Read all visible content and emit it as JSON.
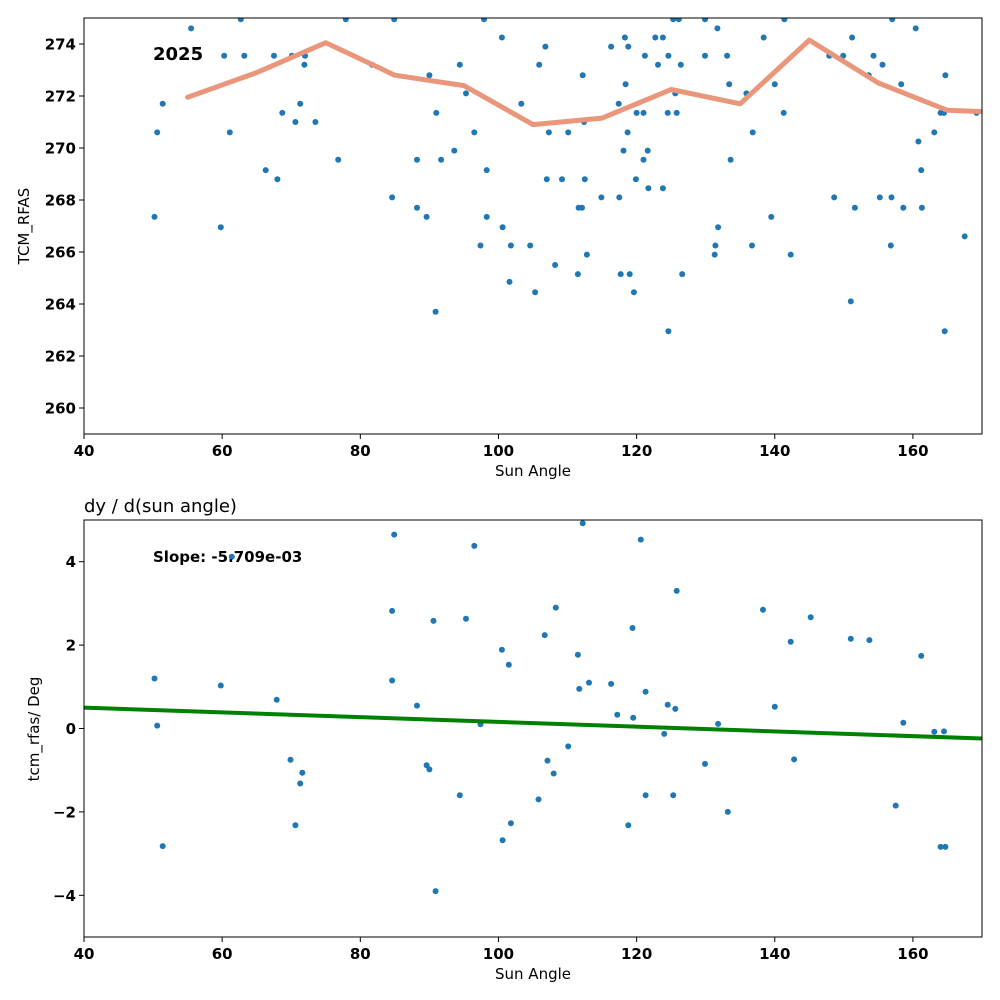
{
  "colors": {
    "points": "#1f77b4",
    "trend_line": "#e9967a",
    "fit_line": "#008000"
  },
  "chart_data": [
    {
      "type": "scatter",
      "title": "",
      "annotation": "2025",
      "xlabel": "Sun Angle",
      "ylabel": "TCM_RFAS",
      "xlim": [
        40,
        170
      ],
      "ylim": [
        259,
        275
      ],
      "xticks": [
        40,
        60,
        80,
        100,
        120,
        140,
        160
      ],
      "yticks": [
        260,
        262,
        264,
        266,
        268,
        270,
        272,
        274
      ],
      "grid": false,
      "points": [
        [
          50.2,
          267.35
        ],
        [
          50.6,
          270.6
        ],
        [
          51.4,
          271.7
        ],
        [
          55.5,
          274.6
        ],
        [
          59.8,
          266.95
        ],
        [
          60.3,
          273.55
        ],
        [
          61.1,
          270.6
        ],
        [
          62.7,
          274.95
        ],
        [
          63.2,
          273.55
        ],
        [
          66.3,
          269.15
        ],
        [
          67.5,
          273.55
        ],
        [
          68.0,
          268.8
        ],
        [
          68.7,
          271.35
        ],
        [
          70.1,
          273.55
        ],
        [
          70.6,
          271.0
        ],
        [
          71.3,
          271.7
        ],
        [
          71.9,
          273.2
        ],
        [
          72.0,
          273.55
        ],
        [
          73.5,
          271.0
        ],
        [
          76.8,
          269.55
        ],
        [
          77.9,
          274.95
        ],
        [
          81.7,
          273.2
        ],
        [
          84.6,
          268.1
        ],
        [
          84.9,
          274.95
        ],
        [
          88.2,
          269.55
        ],
        [
          88.2,
          267.7
        ],
        [
          89.6,
          267.35
        ],
        [
          90.0,
          272.8
        ],
        [
          90.9,
          263.7
        ],
        [
          91.0,
          271.35
        ],
        [
          91.7,
          269.55
        ],
        [
          93.6,
          269.9
        ],
        [
          94.4,
          273.2
        ],
        [
          95.3,
          272.1
        ],
        [
          96.5,
          270.6
        ],
        [
          97.4,
          266.25
        ],
        [
          97.9,
          274.95
        ],
        [
          98.3,
          269.15
        ],
        [
          98.3,
          267.35
        ],
        [
          100.5,
          274.25
        ],
        [
          100.6,
          266.95
        ],
        [
          101.6,
          264.85
        ],
        [
          101.8,
          266.25
        ],
        [
          103.3,
          271.7
        ],
        [
          104.6,
          266.25
        ],
        [
          105.3,
          264.45
        ],
        [
          105.9,
          273.2
        ],
        [
          106.8,
          273.9
        ],
        [
          107.0,
          268.8
        ],
        [
          107.3,
          270.6
        ],
        [
          108.2,
          265.5
        ],
        [
          109.2,
          268.8
        ],
        [
          110.1,
          270.6
        ],
        [
          111.5,
          265.15
        ],
        [
          111.6,
          267.7
        ],
        [
          112.1,
          267.7
        ],
        [
          112.2,
          272.8
        ],
        [
          112.4,
          271.0
        ],
        [
          112.5,
          268.8
        ],
        [
          112.8,
          265.9
        ],
        [
          114.9,
          268.1
        ],
        [
          116.3,
          273.9
        ],
        [
          117.4,
          271.7
        ],
        [
          117.5,
          268.1
        ],
        [
          117.7,
          265.15
        ],
        [
          118.1,
          269.9
        ],
        [
          118.3,
          274.25
        ],
        [
          118.4,
          272.45
        ],
        [
          118.7,
          270.6
        ],
        [
          118.8,
          273.9
        ],
        [
          119.0,
          265.15
        ],
        [
          119.6,
          264.45
        ],
        [
          119.9,
          268.8
        ],
        [
          120.0,
          271.35
        ],
        [
          121.0,
          271.35
        ],
        [
          121.0,
          269.55
        ],
        [
          121.2,
          273.55
        ],
        [
          121.6,
          269.9
        ],
        [
          121.7,
          268.45
        ],
        [
          122.7,
          274.25
        ],
        [
          123.1,
          273.2
        ],
        [
          123.8,
          274.25
        ],
        [
          123.8,
          268.45
        ],
        [
          124.5,
          271.35
        ],
        [
          124.6,
          273.55
        ],
        [
          124.6,
          262.95
        ],
        [
          125.3,
          274.95
        ],
        [
          125.6,
          272.1
        ],
        [
          125.8,
          271.35
        ],
        [
          126.1,
          274.95
        ],
        [
          126.4,
          273.2
        ],
        [
          126.6,
          265.15
        ],
        [
          129.9,
          273.55
        ],
        [
          129.9,
          274.95
        ],
        [
          131.3,
          265.9
        ],
        [
          131.4,
          266.25
        ],
        [
          131.7,
          274.6
        ],
        [
          131.8,
          266.95
        ],
        [
          133.1,
          273.55
        ],
        [
          133.4,
          272.45
        ],
        [
          133.6,
          269.55
        ],
        [
          135.9,
          272.1
        ],
        [
          136.7,
          266.25
        ],
        [
          136.8,
          270.6
        ],
        [
          138.4,
          274.25
        ],
        [
          139.5,
          267.35
        ],
        [
          140.0,
          272.45
        ],
        [
          141.3,
          271.35
        ],
        [
          141.4,
          274.95
        ],
        [
          142.3,
          265.9
        ],
        [
          147.9,
          273.55
        ],
        [
          148.6,
          268.1
        ],
        [
          149.9,
          273.55
        ],
        [
          151.0,
          264.1
        ],
        [
          151.2,
          274.25
        ],
        [
          151.6,
          267.7
        ],
        [
          153.6,
          272.8
        ],
        [
          154.3,
          273.55
        ],
        [
          155.2,
          268.1
        ],
        [
          155.6,
          273.2
        ],
        [
          156.8,
          266.25
        ],
        [
          156.9,
          268.1
        ],
        [
          157.0,
          274.95
        ],
        [
          158.3,
          272.45
        ],
        [
          158.6,
          267.7
        ],
        [
          160.4,
          274.6
        ],
        [
          160.8,
          270.25
        ],
        [
          161.2,
          269.15
        ],
        [
          161.3,
          267.7
        ],
        [
          163.1,
          270.6
        ],
        [
          164.0,
          271.35
        ],
        [
          164.5,
          271.35
        ],
        [
          164.6,
          262.95
        ],
        [
          164.7,
          272.8
        ],
        [
          167.5,
          266.6
        ],
        [
          169.2,
          271.35
        ]
      ],
      "line": {
        "x": [
          55,
          65,
          75,
          85,
          95,
          105,
          115,
          125,
          135,
          145,
          155,
          165,
          170
        ],
        "y": [
          271.95,
          272.9,
          274.05,
          272.8,
          272.4,
          270.9,
          271.15,
          272.25,
          271.7,
          274.15,
          272.5,
          271.45,
          271.4
        ]
      }
    },
    {
      "type": "scatter",
      "title": "dy / d(sun angle)",
      "annotation": "Slope: -5.709e-03",
      "xlabel": "Sun Angle",
      "ylabel": "tcm_rfas/ Deg",
      "xlim": [
        40,
        170
      ],
      "ylim": [
        -5,
        5
      ],
      "xticks": [
        40,
        60,
        80,
        100,
        120,
        140,
        160
      ],
      "yticks": [
        -4,
        -2,
        0,
        2,
        4
      ],
      "grid": false,
      "points": [
        [
          50.2,
          1.2
        ],
        [
          50.6,
          0.07
        ],
        [
          51.4,
          -2.82
        ],
        [
          59.8,
          1.03
        ],
        [
          61.4,
          4.12
        ],
        [
          67.9,
          0.69
        ],
        [
          69.9,
          -0.75
        ],
        [
          70.6,
          -2.32
        ],
        [
          71.3,
          -1.32
        ],
        [
          71.6,
          -1.06
        ],
        [
          84.6,
          2.82
        ],
        [
          84.6,
          1.15
        ],
        [
          84.9,
          4.65
        ],
        [
          88.2,
          0.55
        ],
        [
          89.6,
          -0.88
        ],
        [
          90.0,
          -0.98
        ],
        [
          90.6,
          2.58
        ],
        [
          90.9,
          -3.9
        ],
        [
          94.4,
          -1.6
        ],
        [
          95.3,
          2.63
        ],
        [
          96.5,
          4.38
        ],
        [
          97.4,
          0.1
        ],
        [
          100.5,
          1.89
        ],
        [
          100.6,
          -2.68
        ],
        [
          101.5,
          1.53
        ],
        [
          101.8,
          -2.27
        ],
        [
          105.8,
          -1.7
        ],
        [
          106.7,
          2.24
        ],
        [
          107.1,
          -0.77
        ],
        [
          108.0,
          -1.08
        ],
        [
          108.3,
          2.9
        ],
        [
          110.1,
          -0.43
        ],
        [
          111.5,
          1.77
        ],
        [
          111.7,
          0.95
        ],
        [
          112.2,
          4.92
        ],
        [
          113.1,
          1.1
        ],
        [
          116.3,
          1.07
        ],
        [
          117.2,
          0.33
        ],
        [
          118.8,
          -2.32
        ],
        [
          119.4,
          2.41
        ],
        [
          119.5,
          0.26
        ],
        [
          120.6,
          4.53
        ],
        [
          121.3,
          0.88
        ],
        [
          121.3,
          -1.6
        ],
        [
          124.0,
          -0.13
        ],
        [
          124.5,
          0.57
        ],
        [
          125.3,
          -1.6
        ],
        [
          125.6,
          0.47
        ],
        [
          125.8,
          3.3
        ],
        [
          129.9,
          -0.85
        ],
        [
          131.8,
          0.11
        ],
        [
          133.2,
          -2.0
        ],
        [
          138.3,
          2.85
        ],
        [
          140.0,
          0.52
        ],
        [
          142.3,
          2.08
        ],
        [
          142.8,
          -0.74
        ],
        [
          145.2,
          2.67
        ],
        [
          151.0,
          2.15
        ],
        [
          153.7,
          2.12
        ],
        [
          157.5,
          -1.85
        ],
        [
          158.6,
          0.14
        ],
        [
          161.2,
          1.74
        ],
        [
          163.1,
          -0.08
        ],
        [
          164.0,
          -2.84
        ],
        [
          164.5,
          -0.07
        ],
        [
          164.7,
          -2.84
        ]
      ],
      "fit": {
        "x": [
          40,
          170
        ],
        "y": [
          0.5,
          -0.24
        ]
      }
    }
  ]
}
